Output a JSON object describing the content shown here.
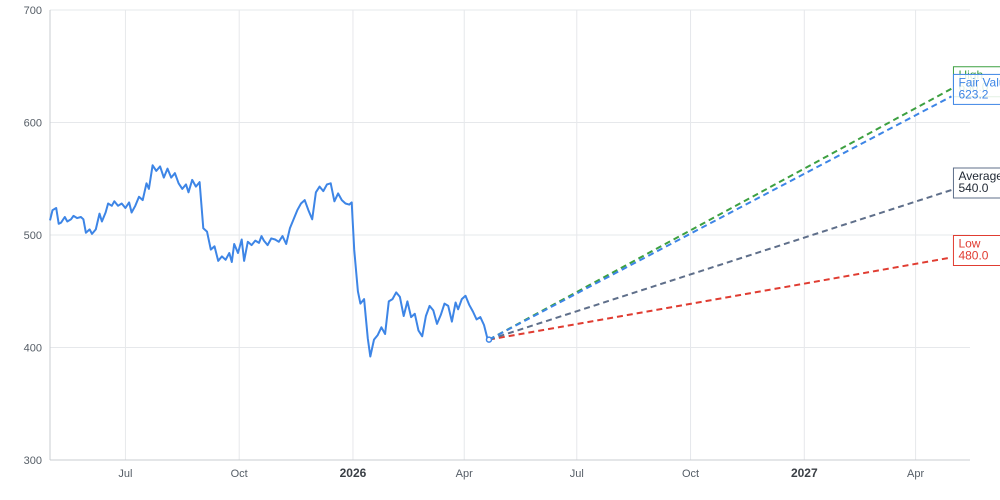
{
  "chart_data": {
    "type": "line",
    "title": "",
    "xlabel": "",
    "ylabel": "",
    "ylim": [
      300,
      700
    ],
    "y_ticks": [
      300,
      400,
      500,
      600,
      700
    ],
    "x_range": [
      "2025-05-01",
      "2027-05-15"
    ],
    "x_ticks": [
      {
        "date": "2025-07-01",
        "label": "Jul",
        "bold": false
      },
      {
        "date": "2025-10-01",
        "label": "Oct",
        "bold": false
      },
      {
        "date": "2026-01-01",
        "label": "2026",
        "bold": true
      },
      {
        "date": "2026-04-01",
        "label": "Apr",
        "bold": false
      },
      {
        "date": "2026-07-01",
        "label": "Jul",
        "bold": false
      },
      {
        "date": "2026-10-01",
        "label": "Oct",
        "bold": false
      },
      {
        "date": "2027-01-01",
        "label": "2027",
        "bold": true
      },
      {
        "date": "2027-04-01",
        "label": "Apr",
        "bold": false
      }
    ],
    "grid": true,
    "history": {
      "color": "#3d85e6",
      "points": [
        [
          "2025-05-01",
          513
        ],
        [
          "2025-05-03",
          522
        ],
        [
          "2025-05-06",
          524
        ],
        [
          "2025-05-08",
          510
        ],
        [
          "2025-05-10",
          511
        ],
        [
          "2025-05-13",
          516
        ],
        [
          "2025-05-15",
          512
        ],
        [
          "2025-05-18",
          514
        ],
        [
          "2025-05-20",
          517
        ],
        [
          "2025-05-23",
          515
        ],
        [
          "2025-05-26",
          516
        ],
        [
          "2025-05-28",
          514
        ],
        [
          "2025-05-30",
          502
        ],
        [
          "2025-06-02",
          505
        ],
        [
          "2025-06-04",
          501
        ],
        [
          "2025-06-07",
          505
        ],
        [
          "2025-06-10",
          519
        ],
        [
          "2025-06-12",
          512
        ],
        [
          "2025-06-15",
          520
        ],
        [
          "2025-06-17",
          528
        ],
        [
          "2025-06-20",
          526
        ],
        [
          "2025-06-22",
          530
        ],
        [
          "2025-06-25",
          526
        ],
        [
          "2025-06-28",
          528
        ],
        [
          "2025-07-01",
          524
        ],
        [
          "2025-07-04",
          529
        ],
        [
          "2025-07-06",
          520
        ],
        [
          "2025-07-09",
          526
        ],
        [
          "2025-07-12",
          534
        ],
        [
          "2025-07-15",
          531
        ],
        [
          "2025-07-18",
          546
        ],
        [
          "2025-07-20",
          541
        ],
        [
          "2025-07-23",
          562
        ],
        [
          "2025-07-26",
          557
        ],
        [
          "2025-07-29",
          561
        ],
        [
          "2025-08-01",
          551
        ],
        [
          "2025-08-04",
          559
        ],
        [
          "2025-08-07",
          551
        ],
        [
          "2025-08-10",
          555
        ],
        [
          "2025-08-13",
          546
        ],
        [
          "2025-08-16",
          541
        ],
        [
          "2025-08-19",
          545
        ],
        [
          "2025-08-21",
          538
        ],
        [
          "2025-08-24",
          549
        ],
        [
          "2025-08-27",
          543
        ],
        [
          "2025-08-30",
          547
        ],
        [
          "2025-09-02",
          506
        ],
        [
          "2025-09-05",
          503
        ],
        [
          "2025-09-08",
          487
        ],
        [
          "2025-09-11",
          490
        ],
        [
          "2025-09-14",
          477
        ],
        [
          "2025-09-17",
          481
        ],
        [
          "2025-09-20",
          478
        ],
        [
          "2025-09-23",
          484
        ],
        [
          "2025-09-25",
          476
        ],
        [
          "2025-09-27",
          492
        ],
        [
          "2025-09-30",
          484
        ],
        [
          "2025-10-03",
          496
        ],
        [
          "2025-10-05",
          477
        ],
        [
          "2025-10-08",
          494
        ],
        [
          "2025-10-11",
          491
        ],
        [
          "2025-10-14",
          495
        ],
        [
          "2025-10-17",
          493
        ],
        [
          "2025-10-19",
          499
        ],
        [
          "2025-10-21",
          495
        ],
        [
          "2025-10-24",
          491
        ],
        [
          "2025-10-27",
          497
        ],
        [
          "2025-10-30",
          496
        ],
        [
          "2025-11-02",
          494
        ],
        [
          "2025-11-05",
          499
        ],
        [
          "2025-11-08",
          492
        ],
        [
          "2025-11-11",
          506
        ],
        [
          "2025-11-14",
          514
        ],
        [
          "2025-11-17",
          522
        ],
        [
          "2025-11-20",
          528
        ],
        [
          "2025-11-23",
          531
        ],
        [
          "2025-11-26",
          522
        ],
        [
          "2025-11-29",
          514
        ],
        [
          "2025-12-02",
          538
        ],
        [
          "2025-12-05",
          543
        ],
        [
          "2025-12-08",
          539
        ],
        [
          "2025-12-11",
          545
        ],
        [
          "2025-12-14",
          546
        ],
        [
          "2025-12-17",
          530
        ],
        [
          "2025-12-20",
          537
        ],
        [
          "2025-12-23",
          531
        ],
        [
          "2025-12-26",
          528
        ],
        [
          "2025-12-29",
          527
        ],
        [
          "2025-12-31",
          529
        ],
        [
          "2026-01-02",
          487
        ],
        [
          "2026-01-05",
          450
        ],
        [
          "2026-01-07",
          439
        ],
        [
          "2026-01-10",
          443
        ],
        [
          "2026-01-13",
          408
        ],
        [
          "2026-01-15",
          392
        ],
        [
          "2026-01-18",
          407
        ],
        [
          "2026-01-21",
          411
        ],
        [
          "2026-01-24",
          418
        ],
        [
          "2026-01-27",
          412
        ],
        [
          "2026-01-30",
          441
        ],
        [
          "2026-02-02",
          443
        ],
        [
          "2026-02-05",
          449
        ],
        [
          "2026-02-08",
          445
        ],
        [
          "2026-02-11",
          428
        ],
        [
          "2026-02-14",
          441
        ],
        [
          "2026-02-17",
          427
        ],
        [
          "2026-02-20",
          430
        ],
        [
          "2026-02-23",
          415
        ],
        [
          "2026-02-26",
          410
        ],
        [
          "2026-03-01",
          428
        ],
        [
          "2026-03-04",
          437
        ],
        [
          "2026-03-07",
          433
        ],
        [
          "2026-03-10",
          421
        ],
        [
          "2026-03-13",
          429
        ],
        [
          "2026-03-16",
          439
        ],
        [
          "2026-03-19",
          437
        ],
        [
          "2026-03-22",
          423
        ],
        [
          "2026-03-25",
          440
        ],
        [
          "2026-03-27",
          434
        ],
        [
          "2026-03-30",
          443
        ],
        [
          "2026-04-02",
          446
        ],
        [
          "2026-04-05",
          438
        ],
        [
          "2026-04-08",
          432
        ],
        [
          "2026-04-11",
          425
        ],
        [
          "2026-04-14",
          427
        ],
        [
          "2026-04-17",
          420
        ],
        [
          "2026-04-20",
          407
        ]
      ]
    },
    "forecast_start": {
      "date": "2026-04-21",
      "value": 407
    },
    "forecast_end_date": "2027-04-30",
    "forecasts": [
      {
        "name": "High",
        "value_label": "630.0",
        "value": 630,
        "color": "#3da041"
      },
      {
        "name": "Fair Value",
        "value_label": "623.2",
        "value": 623.2,
        "color": "#3d85e6"
      },
      {
        "name": "Average",
        "value_label": "540.0",
        "value": 540,
        "color": "#5f6f8a"
      },
      {
        "name": "Low",
        "value_label": "480.0",
        "value": 480,
        "color": "#e03c31"
      }
    ]
  }
}
